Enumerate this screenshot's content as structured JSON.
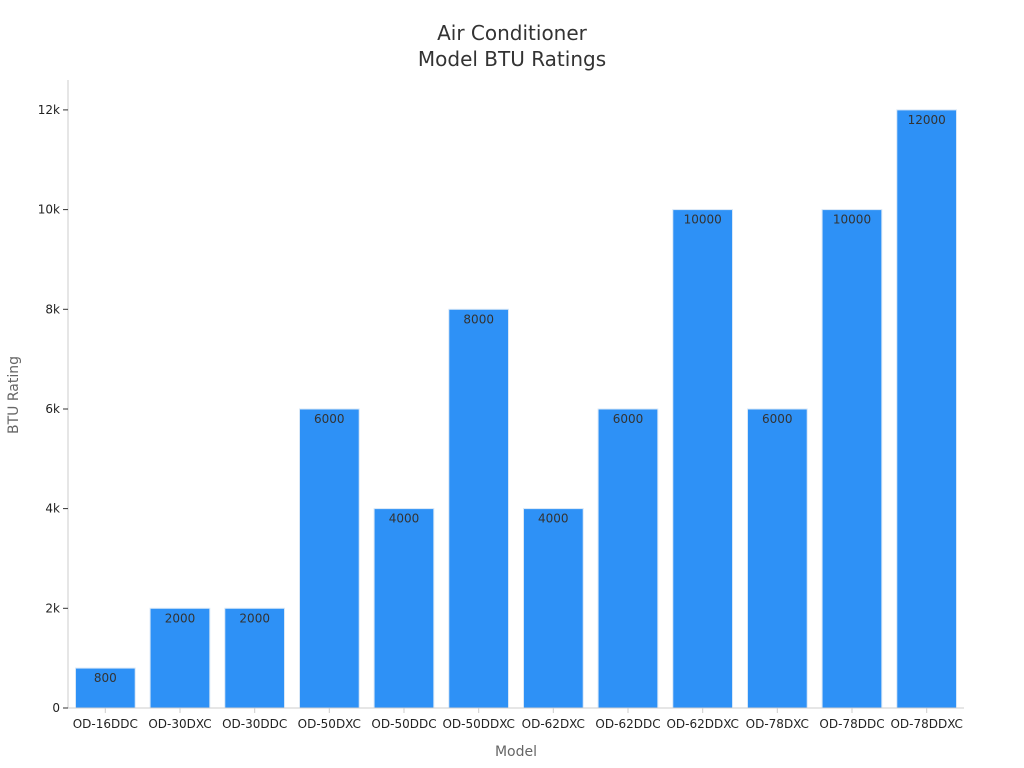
{
  "chart_data": {
    "type": "bar",
    "title_lines": [
      "Air Conditioner",
      "Model BTU Ratings"
    ],
    "xlabel": "Model",
    "ylabel": "BTU Rating",
    "categories": [
      "OD-16DDC",
      "OD-30DXC",
      "OD-30DDC",
      "OD-50DXC",
      "OD-50DDC",
      "OD-50DDXC",
      "OD-62DXC",
      "OD-62DDC",
      "OD-62DDXC",
      "OD-78DXC",
      "OD-78DDC",
      "OD-78DDXC"
    ],
    "values": [
      800,
      2000,
      2000,
      6000,
      4000,
      8000,
      4000,
      6000,
      10000,
      6000,
      10000,
      12000
    ],
    "data_labels": [
      "800",
      "2000",
      "2000",
      "6000",
      "4000",
      "8000",
      "4000",
      "6000",
      "10000",
      "6000",
      "10000",
      "12000"
    ],
    "y_ticks": [
      0,
      2000,
      4000,
      6000,
      8000,
      10000,
      12000
    ],
    "y_tick_labels": [
      "0",
      "2k",
      "4k",
      "6k",
      "8k",
      "10k",
      "12k"
    ],
    "ylim": [
      0,
      12600
    ],
    "grid": false,
    "legend": "none",
    "colors": {
      "bar": "#2E91F6",
      "bar_edge": "#D7E7F7",
      "axis": "#CCCCCC"
    }
  }
}
